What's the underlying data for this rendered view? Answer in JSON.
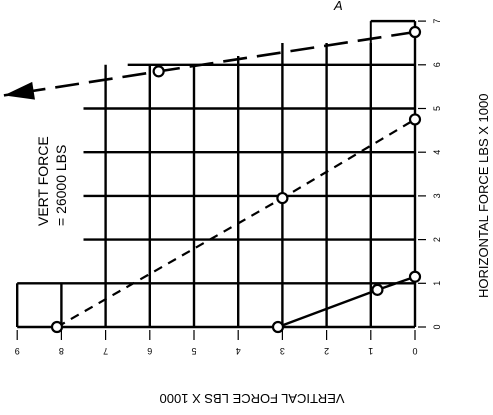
{
  "chart_data": {
    "type": "line",
    "title": "",
    "vertical_axis_label": "HORIZONTAL FORCE LBS X 1000",
    "horizontal_axis_label": "VERTICAL FORCE LBS X 1000",
    "vertical_axis_ticks": [
      "0",
      "1",
      "2",
      "3",
      "4",
      "5",
      "6",
      "7"
    ],
    "horizontal_axis_ticks": [
      "0",
      "1",
      "2",
      "3",
      "4",
      "5",
      "6",
      "7",
      "8",
      "9"
    ],
    "vertical_axis_range": [
      0,
      7
    ],
    "horizontal_axis_range": [
      0,
      9
    ],
    "horizontal_axis_reversed": true,
    "grid": true,
    "series": [
      {
        "style": "solid",
        "points": [
          {
            "vertical_force": 3.1,
            "horizontal_force": 0.0
          },
          {
            "vertical_force": 0.85,
            "horizontal_force": 0.85
          },
          {
            "vertical_force": 0.0,
            "horizontal_force": 1.15
          }
        ]
      },
      {
        "style": "short-dash",
        "points": [
          {
            "vertical_force": 8.1,
            "horizontal_force": 0.0
          },
          {
            "vertical_force": 3.0,
            "horizontal_force": 2.95
          },
          {
            "vertical_force": 0.0,
            "horizontal_force": 4.75
          }
        ]
      },
      {
        "style": "long-dash-arrow",
        "points": [
          {
            "vertical_force": 0.0,
            "horizontal_force": 6.75
          },
          {
            "vertical_force": 5.8,
            "horizontal_force": 5.85
          },
          {
            "vertical_force": 9.3,
            "horizontal_force": 5.3
          }
        ]
      }
    ],
    "annotations": [
      {
        "text": "VERT FORCE",
        "line2": "= 26000 LBS"
      },
      {
        "text": "A"
      }
    ],
    "color": "#000000"
  }
}
